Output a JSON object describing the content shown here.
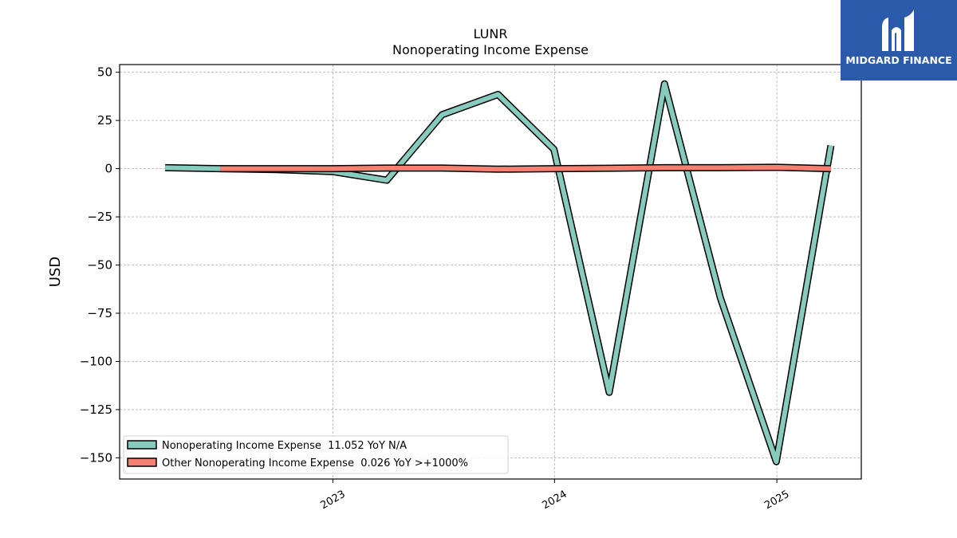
{
  "brand": {
    "name": "MIDGARD FINANCE",
    "bg_color": "#2b5aab"
  },
  "chart_data": {
    "type": "line",
    "title": "LUNR",
    "subtitle": "Nonoperating Income Expense",
    "xlabel": "",
    "ylabel": "USD",
    "ylim": [
      -161,
      54
    ],
    "xlim": [
      "2022-01-15",
      "2025-05-20"
    ],
    "yticks": [
      50,
      25,
      0,
      -25,
      -50,
      -75,
      -100,
      -125,
      -150
    ],
    "ytick_labels": [
      "50",
      "25",
      "0",
      "−25",
      "−50",
      "−75",
      "−100",
      "−125",
      "−150"
    ],
    "xticks": [
      "2023-01-01",
      "2024-01-01",
      "2025-01-01"
    ],
    "xtick_labels": [
      "2023",
      "2024",
      "2025"
    ],
    "grid": true,
    "legend_position": "lower-left",
    "series": [
      {
        "name": "Nonoperating Income Expense  11.052 YoY N/A",
        "color": "#86cbbe",
        "x": [
          "2022-03-31",
          "2022-06-30",
          "2022-09-30",
          "2022-12-31",
          "2023-03-31",
          "2023-06-30",
          "2023-09-30",
          "2023-12-31",
          "2024-03-31",
          "2024-06-30",
          "2024-09-30",
          "2024-12-31",
          "2025-03-31"
        ],
        "y": [
          0.5,
          0,
          -0.5,
          -1.5,
          -6,
          28,
          38.5,
          10,
          -116,
          44,
          -67,
          -152,
          12
        ]
      },
      {
        "name": "Other Nonoperating Income Expense  0.026 YoY >+1000%",
        "color": "#f48072",
        "x": [
          "2022-06-30",
          "2022-09-30",
          "2022-12-31",
          "2023-03-31",
          "2023-06-30",
          "2023-09-30",
          "2023-12-31",
          "2024-03-31",
          "2024-06-30",
          "2024-09-30",
          "2024-12-31",
          "2025-03-31"
        ],
        "y": [
          0,
          0,
          0,
          0.3,
          0.3,
          -0.3,
          0,
          0.2,
          0.5,
          0.5,
          0.7,
          0
        ]
      }
    ]
  }
}
